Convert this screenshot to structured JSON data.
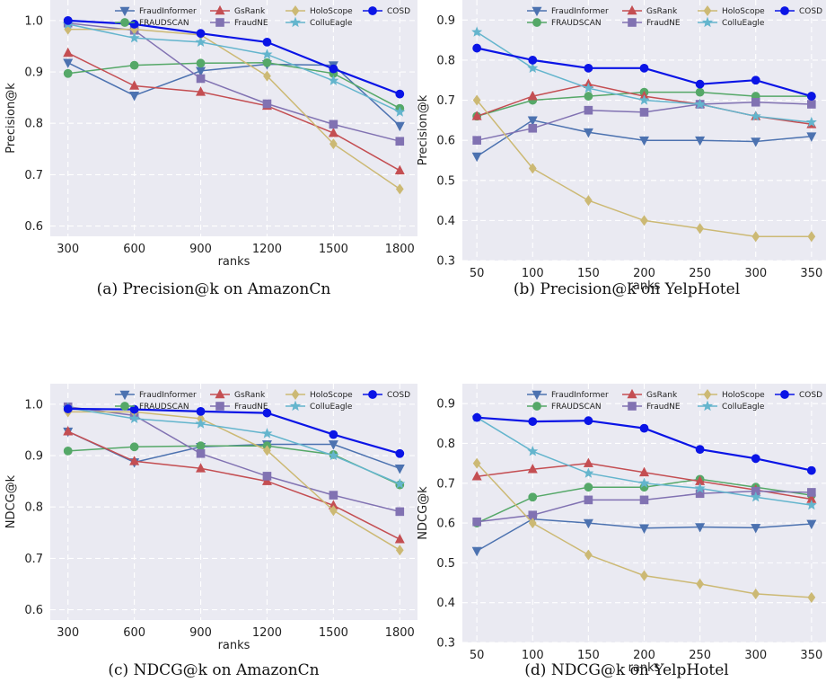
{
  "colors": {
    "FraudInformer": "#4c72b0",
    "FRAUDSCAN": "#55a868",
    "GsRank": "#c44e52",
    "FraudNE": "#8172b2",
    "HoloScope": "#ccb974",
    "ColluEagle": "#64b5cd",
    "COSD": "#0a14e6",
    "plot_bg": "#eaeaf2",
    "grid": "#ffffff"
  },
  "markers": {
    "FraudInformer": "tri-down",
    "FRAUDSCAN": "circle",
    "GsRank": "tri-up",
    "FraudNE": "square",
    "HoloScope": "diamond",
    "ColluEagle": "star",
    "COSD": "circle"
  },
  "legend_order": [
    "FraudInformer",
    "GsRank",
    "HoloScope",
    "COSD",
    "FRAUDSCAN",
    "FraudNE",
    "ColluEagle"
  ],
  "chart_data": [
    {
      "type": "line",
      "caption": "(a) Precision@k on AmazonCn",
      "xlabel": "ranks",
      "ylabel": "Precision@k",
      "x": [
        300,
        600,
        900,
        1200,
        1500,
        1800
      ],
      "xticks": [
        "300",
        "600",
        "900",
        "1200",
        "1500",
        "1800"
      ],
      "xlim": [
        220,
        1880
      ],
      "ylim": [
        0.58,
        1.04
      ],
      "yticks": [
        0.6,
        0.7,
        0.8,
        0.9,
        1.0
      ],
      "ytick_labels": [
        "0.6",
        "0.7",
        "0.8",
        "0.9",
        "1.0"
      ],
      "legend": "top",
      "grid": true,
      "series": [
        {
          "name": "FraudInformer",
          "values": [
            0.918,
            0.854,
            0.902,
            0.915,
            0.913,
            0.795
          ]
        },
        {
          "name": "FRAUDSCAN",
          "values": [
            0.897,
            0.913,
            0.917,
            0.918,
            0.897,
            0.829
          ]
        },
        {
          "name": "GsRank",
          "values": [
            0.937,
            0.873,
            0.861,
            0.834,
            0.781,
            0.708
          ]
        },
        {
          "name": "FraudNE",
          "values": [
            0.995,
            0.981,
            0.887,
            0.838,
            0.798,
            0.765
          ]
        },
        {
          "name": "HoloScope",
          "values": [
            0.983,
            0.983,
            0.972,
            0.892,
            0.76,
            0.672
          ]
        },
        {
          "name": "ColluEagle",
          "values": [
            0.993,
            0.966,
            0.958,
            0.934,
            0.883,
            0.822
          ]
        },
        {
          "name": "COSD",
          "values": [
            1.0,
            0.993,
            0.975,
            0.958,
            0.906,
            0.857
          ]
        }
      ]
    },
    {
      "type": "line",
      "caption": "(b) Precision@k on YelpHotel",
      "xlabel": "ranks",
      "ylabel": "Precision@k",
      "x": [
        50,
        100,
        150,
        200,
        250,
        300,
        350
      ],
      "xticks": [
        "50",
        "100",
        "150",
        "200",
        "250",
        "300",
        "350"
      ],
      "xlim": [
        37,
        363
      ],
      "ylim": [
        0.3,
        0.95
      ],
      "yticks": [
        0.3,
        0.4,
        0.5,
        0.6,
        0.7,
        0.8,
        0.9
      ],
      "ytick_labels": [
        "0.3",
        "0.4",
        "0.5",
        "0.6",
        "0.7",
        "0.8",
        "0.9"
      ],
      "legend": "top",
      "grid": true,
      "series": [
        {
          "name": "FraudInformer",
          "values": [
            0.56,
            0.65,
            0.62,
            0.6,
            0.6,
            0.597,
            0.61
          ]
        },
        {
          "name": "FRAUDSCAN",
          "values": [
            0.66,
            0.7,
            0.71,
            0.72,
            0.72,
            0.71,
            0.71
          ]
        },
        {
          "name": "GsRank",
          "values": [
            0.66,
            0.71,
            0.74,
            0.71,
            0.69,
            0.66,
            0.64
          ]
        },
        {
          "name": "FraudNE",
          "values": [
            0.6,
            0.63,
            0.675,
            0.67,
            0.69,
            0.695,
            0.69
          ]
        },
        {
          "name": "HoloScope",
          "values": [
            0.7,
            0.53,
            0.45,
            0.4,
            0.38,
            0.36,
            0.36
          ]
        },
        {
          "name": "ColluEagle",
          "values": [
            0.87,
            0.78,
            0.73,
            0.7,
            0.69,
            0.66,
            0.645
          ]
        },
        {
          "name": "COSD",
          "values": [
            0.83,
            0.8,
            0.78,
            0.78,
            0.74,
            0.75,
            0.71
          ]
        }
      ]
    },
    {
      "type": "line",
      "caption": "(c) NDCG@k on AmazonCn",
      "xlabel": "ranks",
      "ylabel": "NDCG@k",
      "x": [
        300,
        600,
        900,
        1200,
        1500,
        1800
      ],
      "xticks": [
        "300",
        "600",
        "900",
        "1200",
        "1500",
        "1800"
      ],
      "xlim": [
        220,
        1880
      ],
      "ylim": [
        0.58,
        1.04
      ],
      "yticks": [
        0.6,
        0.7,
        0.8,
        0.9,
        1.0
      ],
      "ytick_labels": [
        "0.6",
        "0.7",
        "0.8",
        "0.9",
        "1.0"
      ],
      "legend": "top",
      "grid": true,
      "series": [
        {
          "name": "FraudInformer",
          "values": [
            0.947,
            0.887,
            0.917,
            0.922,
            0.922,
            0.875
          ]
        },
        {
          "name": "FRAUDSCAN",
          "values": [
            0.909,
            0.917,
            0.919,
            0.919,
            0.902,
            0.843
          ]
        },
        {
          "name": "GsRank",
          "values": [
            0.947,
            0.889,
            0.875,
            0.85,
            0.803,
            0.737
          ]
        },
        {
          "name": "FraudNE",
          "values": [
            0.995,
            0.978,
            0.904,
            0.86,
            0.823,
            0.791
          ]
        },
        {
          "name": "HoloScope",
          "values": [
            0.985,
            0.985,
            0.972,
            0.91,
            0.793,
            0.716
          ]
        },
        {
          "name": "ColluEagle",
          "values": [
            0.993,
            0.972,
            0.962,
            0.943,
            0.9,
            0.845
          ]
        },
        {
          "name": "COSD",
          "values": [
            0.991,
            0.99,
            0.986,
            0.983,
            0.941,
            0.904
          ]
        }
      ]
    },
    {
      "type": "line",
      "caption": "(d) NDCG@k on YelpHotel",
      "xlabel": "ranks",
      "ylabel": "NDCG@k",
      "x": [
        50,
        100,
        150,
        200,
        250,
        300,
        350
      ],
      "xticks": [
        "50",
        "100",
        "150",
        "200",
        "250",
        "300",
        "350"
      ],
      "xlim": [
        37,
        363
      ],
      "ylim": [
        0.3,
        0.95
      ],
      "yticks": [
        0.3,
        0.4,
        0.5,
        0.6,
        0.7,
        0.8,
        0.9
      ],
      "ytick_labels": [
        "0.3",
        "0.4",
        "0.5",
        "0.6",
        "0.7",
        "0.8",
        "0.9"
      ],
      "legend": "top",
      "grid": true,
      "series": [
        {
          "name": "FraudInformer",
          "values": [
            0.53,
            0.61,
            0.6,
            0.587,
            0.59,
            0.588,
            0.598
          ]
        },
        {
          "name": "FRAUDSCAN",
          "values": [
            0.6,
            0.665,
            0.69,
            0.69,
            0.71,
            0.69,
            0.67
          ]
        },
        {
          "name": "GsRank",
          "values": [
            0.717,
            0.735,
            0.75,
            0.727,
            0.705,
            0.683,
            0.66
          ]
        },
        {
          "name": "FraudNE",
          "values": [
            0.603,
            0.62,
            0.658,
            0.658,
            0.674,
            0.68,
            0.677
          ]
        },
        {
          "name": "HoloScope",
          "values": [
            0.75,
            0.6,
            0.52,
            0.468,
            0.447,
            0.422,
            0.413
          ]
        },
        {
          "name": "ColluEagle",
          "values": [
            0.865,
            0.78,
            0.725,
            0.7,
            0.687,
            0.665,
            0.645
          ]
        },
        {
          "name": "COSD",
          "values": [
            0.865,
            0.855,
            0.857,
            0.838,
            0.785,
            0.762,
            0.732
          ]
        }
      ]
    }
  ]
}
